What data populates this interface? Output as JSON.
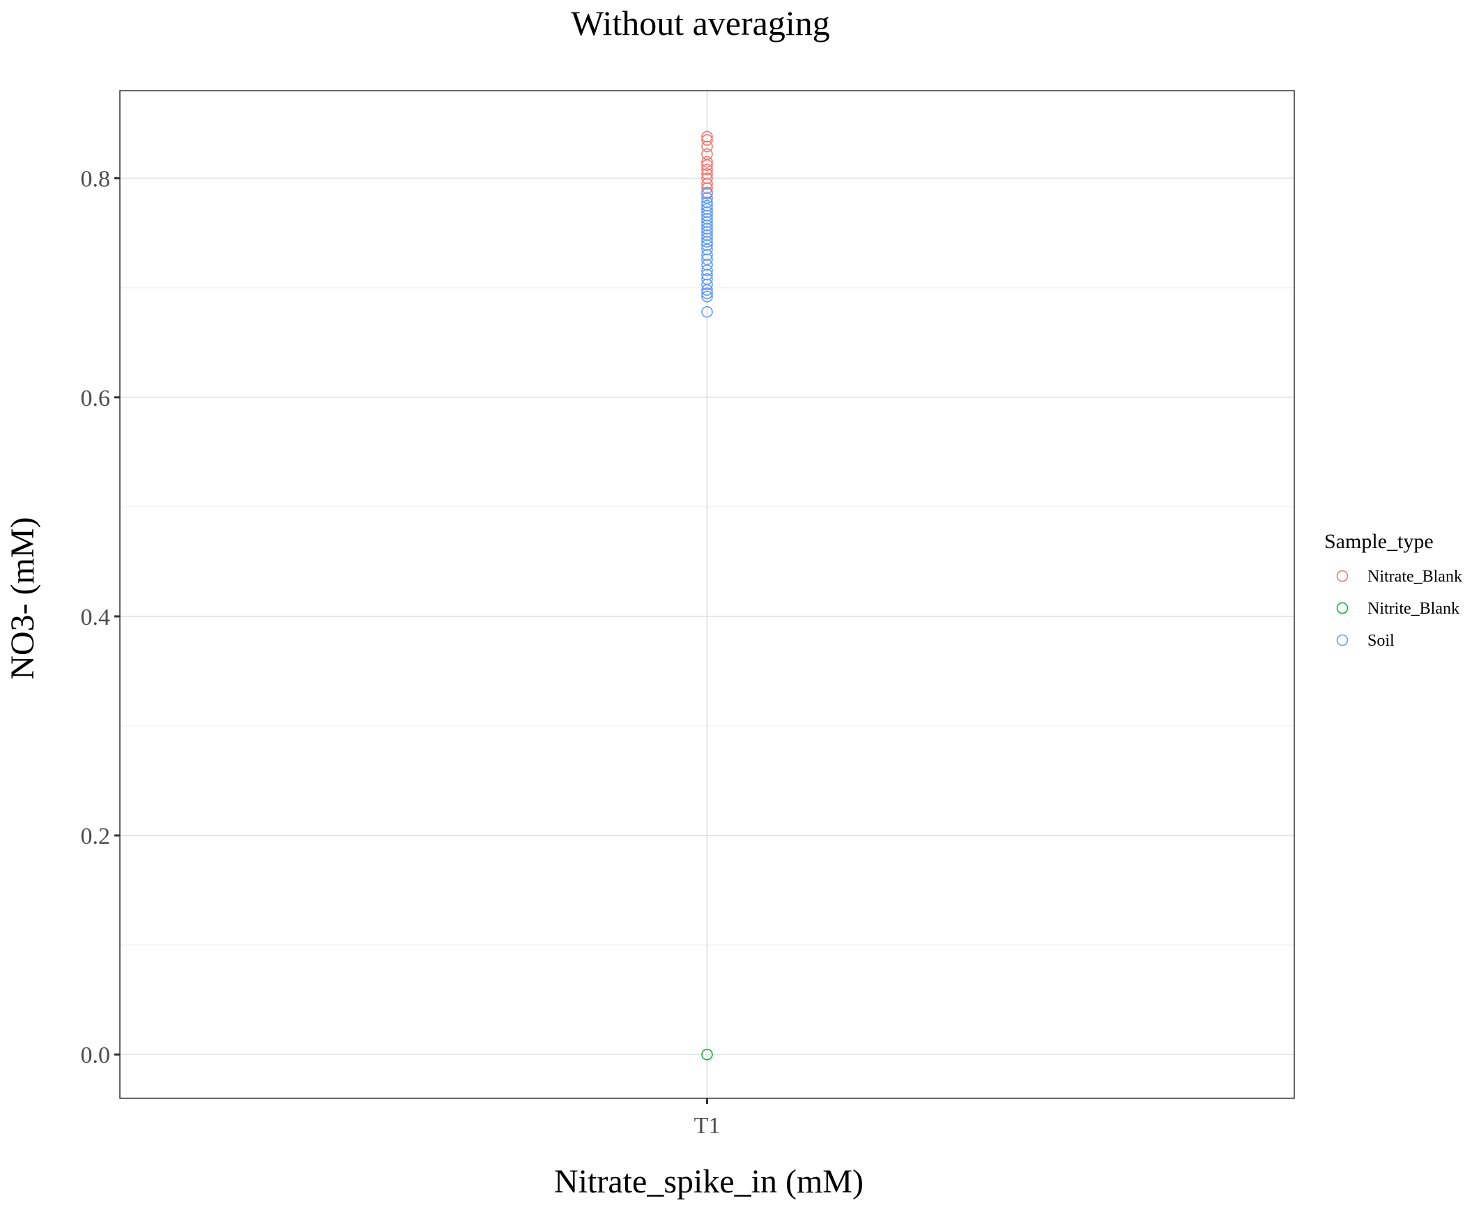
{
  "chart_data": {
    "type": "scatter",
    "title": "Without averaging",
    "xlabel": "Nitrate_spike_in (mM)",
    "ylabel": "NO3- (mM)",
    "x_type": "categorical",
    "categories": [
      "T1"
    ],
    "ylim": [
      -0.04,
      0.88
    ],
    "y_ticks": [
      0.0,
      0.2,
      0.4,
      0.6,
      0.8
    ],
    "y_tick_labels": [
      "0.0",
      "0.2",
      "0.4",
      "0.6",
      "0.8"
    ],
    "y_minor_ticks": [
      0.1,
      0.3,
      0.5,
      0.7
    ],
    "grid": true,
    "marker": "open-circle",
    "legend": {
      "title": "Sample_type",
      "position": "right"
    },
    "series": [
      {
        "name": "Nitrate_Blank",
        "color": "#F8766D",
        "x": [
          "T1",
          "T1",
          "T1",
          "T1",
          "T1",
          "T1",
          "T1",
          "T1",
          "T1",
          "T1",
          "T1",
          "T1"
        ],
        "y": [
          0.838,
          0.835,
          0.829,
          0.822,
          0.815,
          0.812,
          0.808,
          0.804,
          0.8,
          0.795,
          0.791,
          0.787
        ]
      },
      {
        "name": "Nitrite_Blank",
        "color": "#00BA38",
        "x": [
          "T1"
        ],
        "y": [
          0.0
        ]
      },
      {
        "name": "Soil",
        "color": "#619CFF",
        "x": [
          "T1",
          "T1",
          "T1",
          "T1",
          "T1",
          "T1",
          "T1",
          "T1",
          "T1",
          "T1",
          "T1",
          "T1",
          "T1",
          "T1",
          "T1",
          "T1",
          "T1",
          "T1",
          "T1",
          "T1",
          "T1",
          "T1",
          "T1",
          "T1",
          "T1",
          "T1",
          "T1",
          "T1"
        ],
        "y": [
          0.786,
          0.782,
          0.778,
          0.775,
          0.772,
          0.769,
          0.766,
          0.763,
          0.76,
          0.757,
          0.754,
          0.751,
          0.748,
          0.745,
          0.742,
          0.739,
          0.735,
          0.73,
          0.726,
          0.721,
          0.716,
          0.712,
          0.708,
          0.703,
          0.698,
          0.695,
          0.692,
          0.678
        ]
      }
    ]
  }
}
